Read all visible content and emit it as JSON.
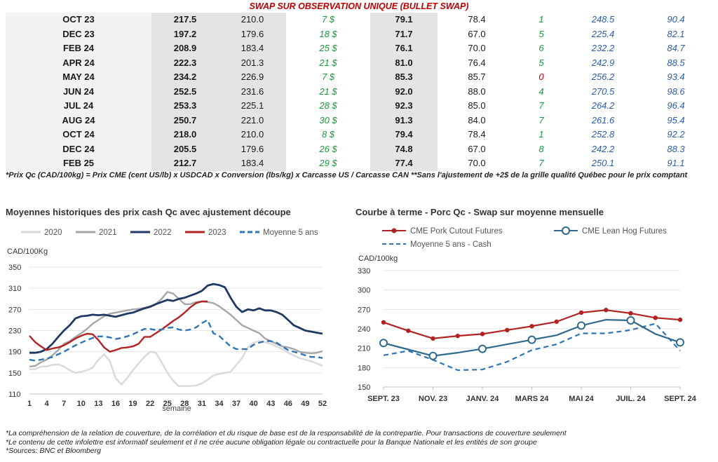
{
  "banner": "SWAP SUR OBSERVATION UNIQUE (BULLET SWAP)",
  "colors": {
    "green": "#1a9a3a",
    "red": "#c00000",
    "blue": "#2a5da8",
    "c2020": "#d9d9d9",
    "c2021": "#a6a6a6",
    "c2022": "#1f3864",
    "c2023": "#b22222",
    "c5ans": "#2e75b6",
    "pork": "#b22222",
    "hog": "#2e6a8e",
    "cash": "#2e75b6"
  },
  "table": {
    "rows": [
      {
        "month": "OCT 23",
        "c1": "217.5",
        "c2": "210.0",
        "c3": "7 $",
        "c3_color": "green",
        "c4": "79.1",
        "c5": "78.4",
        "c6": "1",
        "c6_color": "green",
        "c7": "248.5",
        "c8": "90.4"
      },
      {
        "month": "DEC 23",
        "c1": "197.2",
        "c2": "179.6",
        "c3": "18 $",
        "c3_color": "green",
        "c4": "71.7",
        "c5": "67.0",
        "c6": "5",
        "c6_color": "green",
        "c7": "225.4",
        "c8": "82.1"
      },
      {
        "month": "FEB 24",
        "c1": "208.9",
        "c2": "183.4",
        "c3": "25 $",
        "c3_color": "green",
        "c4": "76.1",
        "c5": "70.0",
        "c6": "6",
        "c6_color": "green",
        "c7": "232.2",
        "c8": "84.7"
      },
      {
        "month": "APR 24",
        "c1": "222.3",
        "c2": "201.3",
        "c3": "21 $",
        "c3_color": "green",
        "c4": "81.0",
        "c5": "76.4",
        "c6": "5",
        "c6_color": "green",
        "c7": "242.9",
        "c8": "88.5"
      },
      {
        "month": "MAY 24",
        "c1": "234.2",
        "c2": "226.9",
        "c3": "7 $",
        "c3_color": "green",
        "c4": "85.3",
        "c5": "85.7",
        "c6": "0",
        "c6_color": "red",
        "c7": "256.2",
        "c8": "93.4"
      },
      {
        "month": "JUN 24",
        "c1": "252.5",
        "c2": "231.6",
        "c3": "21 $",
        "c3_color": "green",
        "c4": "92.0",
        "c5": "88.0",
        "c6": "4",
        "c6_color": "green",
        "c7": "270.5",
        "c8": "98.6"
      },
      {
        "month": "JUL 24",
        "c1": "253.3",
        "c2": "225.1",
        "c3": "28 $",
        "c3_color": "green",
        "c4": "92.3",
        "c5": "85.0",
        "c6": "7",
        "c6_color": "green",
        "c7": "264.2",
        "c8": "96.4"
      },
      {
        "month": "AUG 24",
        "c1": "250.7",
        "c2": "221.0",
        "c3": "30 $",
        "c3_color": "green",
        "c4": "91.3",
        "c5": "84.0",
        "c6": "7",
        "c6_color": "green",
        "c7": "261.6",
        "c8": "95.4"
      },
      {
        "month": "OCT 24",
        "c1": "218.0",
        "c2": "210.0",
        "c3": "8 $",
        "c3_color": "green",
        "c4": "79.4",
        "c5": "78.4",
        "c6": "1",
        "c6_color": "green",
        "c7": "252.8",
        "c8": "92.2"
      },
      {
        "month": "DEC 24",
        "c1": "205.5",
        "c2": "179.6",
        "c3": "26 $",
        "c3_color": "green",
        "c4": "74.8",
        "c5": "67.0",
        "c6": "8",
        "c6_color": "green",
        "c7": "242.2",
        "c8": "88.3"
      },
      {
        "month": "FEB 25",
        "c1": "212.7",
        "c2": "183.4",
        "c3": "29 $",
        "c3_color": "green",
        "c4": "77.4",
        "c5": "70.0",
        "c6": "7",
        "c6_color": "green",
        "c7": "250.1",
        "c8": "91.1"
      }
    ]
  },
  "note": "*Prix Qc (CAD/100kg) = Prix CME (cent US/lb) x USDCAD x Conversion (lbs/kg) x Carcasse US / Carcasse CAN **Sans l'ajustement de +2$ de la grille qualité Québec pour le prix comptant",
  "chart_data": [
    {
      "type": "line",
      "title": "Moyennes historiques des prix cash Qc avec ajustement découpe",
      "ylabel": "CAD/100Kg",
      "xlabel": "semaine",
      "ylim": [
        110,
        350
      ],
      "xlim": [
        1,
        52
      ],
      "yticks": [
        "110",
        "150",
        "190",
        "230",
        "270",
        "310",
        "350"
      ],
      "xticks": [
        "1",
        "4",
        "7",
        "10",
        "13",
        "16",
        "19",
        "22",
        "25",
        "28",
        "31",
        "34",
        "37",
        "40",
        "43",
        "46",
        "49",
        "52"
      ],
      "legend": "top",
      "series": [
        {
          "name": "2020",
          "color_key": "c2020",
          "dash": false,
          "x": [
            1,
            2,
            3,
            4,
            5,
            6,
            7,
            8,
            9,
            10,
            11,
            12,
            13,
            14,
            15,
            16,
            17,
            18,
            19,
            20,
            21,
            22,
            23,
            24,
            25,
            26,
            27,
            28,
            29,
            30,
            31,
            32,
            33,
            34,
            35,
            36,
            37,
            38,
            39,
            40,
            41,
            42,
            43,
            44,
            45,
            46,
            47,
            48,
            49,
            50,
            51,
            52
          ],
          "values": [
            157,
            157,
            162,
            162,
            165,
            166,
            162,
            155,
            150,
            152,
            155,
            160,
            175,
            185,
            172,
            140,
            128,
            140,
            155,
            168,
            180,
            190,
            188,
            170,
            150,
            135,
            125,
            125,
            125,
            126,
            130,
            137,
            145,
            148,
            150,
            152,
            165,
            178,
            198,
            207,
            210,
            208,
            205,
            200,
            195,
            188,
            183,
            178,
            175,
            172,
            168,
            163
          ]
        },
        {
          "name": "2021",
          "color_key": "c2021",
          "dash": false,
          "x": [
            1,
            2,
            3,
            4,
            5,
            6,
            7,
            8,
            9,
            10,
            11,
            12,
            13,
            14,
            15,
            16,
            17,
            18,
            19,
            20,
            21,
            22,
            23,
            24,
            25,
            26,
            27,
            28,
            29,
            30,
            31,
            32,
            33,
            34,
            35,
            36,
            37,
            38,
            39,
            40,
            41,
            42,
            43,
            44,
            45,
            46,
            47,
            48,
            49,
            50,
            51,
            52
          ],
          "values": [
            162,
            163,
            170,
            175,
            183,
            193,
            205,
            210,
            218,
            225,
            233,
            243,
            250,
            257,
            262,
            264,
            266,
            268,
            270,
            271,
            273,
            276,
            280,
            290,
            303,
            300,
            290,
            280,
            280,
            284,
            285,
            284,
            282,
            276,
            268,
            260,
            250,
            240,
            235,
            230,
            225,
            215,
            210,
            205,
            200,
            198,
            195,
            190,
            188,
            187,
            188,
            191
          ]
        },
        {
          "name": "2022",
          "color_key": "c2022",
          "dash": false,
          "x": [
            1,
            2,
            3,
            4,
            5,
            6,
            7,
            8,
            9,
            10,
            11,
            12,
            13,
            14,
            15,
            16,
            17,
            18,
            19,
            20,
            21,
            22,
            23,
            24,
            25,
            26,
            27,
            28,
            29,
            30,
            31,
            32,
            33,
            34,
            35,
            36,
            37,
            38,
            39,
            40,
            41,
            42,
            43,
            44,
            45,
            46,
            47,
            48,
            49,
            50,
            51,
            52
          ],
          "values": [
            188,
            188,
            190,
            195,
            205,
            218,
            230,
            240,
            253,
            257,
            258,
            260,
            259,
            260,
            258,
            256,
            259,
            262,
            264,
            268,
            272,
            275,
            280,
            284,
            288,
            286,
            290,
            292,
            296,
            300,
            305,
            315,
            318,
            316,
            312,
            292,
            275,
            265,
            270,
            268,
            272,
            268,
            268,
            265,
            260,
            250,
            240,
            235,
            230,
            228,
            226,
            224
          ]
        },
        {
          "name": "2023",
          "color_key": "c2023",
          "dash": false,
          "x": [
            1,
            2,
            3,
            4,
            5,
            6,
            7,
            8,
            9,
            10,
            11,
            12,
            13,
            14,
            15,
            16,
            17,
            18,
            19,
            20,
            21,
            22,
            23,
            24,
            25,
            26,
            27,
            28,
            29,
            30,
            31,
            32
          ],
          "values": [
            220,
            208,
            200,
            193,
            196,
            198,
            202,
            208,
            215,
            220,
            224,
            223,
            212,
            198,
            190,
            193,
            197,
            198,
            200,
            205,
            218,
            218,
            225,
            232,
            240,
            248,
            255,
            264,
            274,
            282,
            285,
            285
          ]
        },
        {
          "name": "Moyenne 5 ans",
          "color_key": "c5ans",
          "dash": true,
          "x": [
            1,
            2,
            3,
            4,
            5,
            6,
            7,
            8,
            9,
            10,
            11,
            12,
            13,
            14,
            15,
            16,
            17,
            18,
            19,
            20,
            21,
            22,
            23,
            24,
            25,
            26,
            27,
            28,
            29,
            30,
            31,
            32,
            33,
            34,
            35,
            36,
            37,
            38,
            39,
            40,
            41,
            42,
            43,
            44,
            45,
            46,
            47,
            48,
            49,
            50,
            51,
            52
          ],
          "values": [
            175,
            173,
            175,
            177,
            180,
            185,
            190,
            196,
            202,
            207,
            212,
            216,
            219,
            219,
            217,
            214,
            216,
            219,
            223,
            228,
            233,
            233,
            231,
            232,
            235,
            236,
            232,
            230,
            232,
            236,
            244,
            250,
            225,
            220,
            210,
            200,
            195,
            195,
            195,
            203,
            207,
            210,
            210,
            207,
            200,
            193,
            190,
            187,
            183,
            180,
            180,
            178
          ]
        }
      ]
    },
    {
      "type": "line",
      "title": "Courbe à terme - Porc Qc - Swap sur moyenne mensuelle",
      "ylabel": "CAD/100kg",
      "ylim": [
        150,
        330
      ],
      "yticks": [
        "150",
        "180",
        "210",
        "240",
        "270",
        "300",
        "330"
      ],
      "xticks": [
        "SEPT. 23",
        "NOV. 23",
        "JANV. 24",
        "MARS 24",
        "MAI 24",
        "JUIL. 24",
        "SEPT. 24"
      ],
      "legend": "top",
      "series": [
        {
          "name": "CME Pork Cutout Futures",
          "color_key": "pork",
          "marker": "filled-circle",
          "x": [
            0,
            1,
            2,
            3,
            4,
            5,
            6,
            7,
            8,
            9,
            10,
            11,
            12
          ],
          "values": [
            250,
            237,
            225,
            229,
            232,
            238,
            244,
            251,
            265,
            269,
            264,
            257,
            254
          ]
        },
        {
          "name": "CME Lean Hog Futures",
          "color_key": "hog",
          "marker": "open-circle",
          "x": [
            0,
            1,
            2,
            3,
            4,
            5,
            6,
            7,
            8,
            9,
            10,
            11,
            12
          ],
          "values": [
            218,
            208,
            198,
            203,
            209,
            216,
            223,
            230,
            245,
            254,
            253,
            232,
            219
          ]
        },
        {
          "name": "Moyenne 5 ans - Cash",
          "color_key": "cash",
          "marker": "none",
          "dash": true,
          "x": [
            0,
            1,
            2,
            3,
            4,
            5,
            6,
            7,
            8,
            9,
            10,
            11,
            12
          ],
          "values": [
            199,
            206,
            192,
            176,
            177,
            189,
            207,
            216,
            233,
            233,
            238,
            248,
            206
          ]
        }
      ]
    }
  ],
  "footnotes": [
    "*La compréhension de la relation de couverture, de la corrélation et du risque de base est de la responsabilité de la contrepartie. Pour transactions de couverture seulement",
    "*Le contenu de cette infolettre est informatif seulement et il ne crée aucune obligation légale ou contractuelle pour la Banque Nationale et les entités de son groupe",
    "*Sources: BNC et Bloomberg"
  ]
}
